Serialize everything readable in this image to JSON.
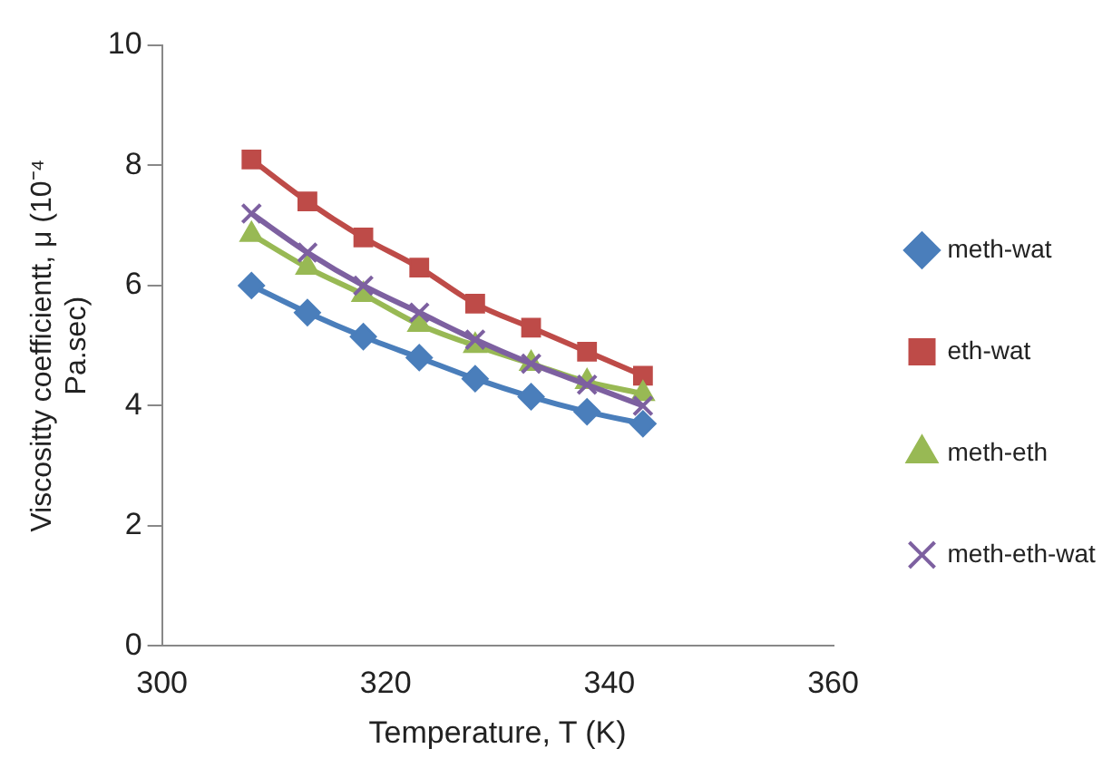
{
  "chart_data": {
    "type": "line",
    "xlabel": "Temperature, T (K)",
    "ylabel": "Viscositty coefficientt, μ (10⁻⁴ Pa.sec)",
    "x": [
      308,
      313,
      318,
      323,
      328,
      333,
      338,
      343
    ],
    "series": [
      {
        "name": "meth-wat",
        "color": "#4a7ebb",
        "marker": "diamond",
        "values": [
          6.0,
          5.55,
          5.15,
          4.8,
          4.45,
          4.15,
          3.9,
          3.7
        ]
      },
      {
        "name": "eth-wat",
        "color": "#be4b48",
        "marker": "square",
        "values": [
          8.1,
          7.4,
          6.8,
          6.3,
          5.7,
          5.3,
          4.9,
          4.5
        ]
      },
      {
        "name": "meth-eth",
        "color": "#98b954",
        "marker": "triangle",
        "values": [
          6.85,
          6.3,
          5.85,
          5.35,
          5.0,
          4.7,
          4.4,
          4.2
        ]
      },
      {
        "name": "meth-eth-wat",
        "color": "#7d60a0",
        "marker": "cross",
        "values": [
          7.2,
          6.55,
          6.0,
          5.55,
          5.1,
          4.7,
          4.35,
          4.0
        ]
      }
    ],
    "xlim": [
      300,
      360
    ],
    "xticks": [
      300,
      320,
      340,
      360
    ],
    "ylim": [
      0,
      10
    ],
    "yticks": [
      0,
      2,
      4,
      6,
      8,
      10
    ],
    "grid": false,
    "legend": "right"
  }
}
